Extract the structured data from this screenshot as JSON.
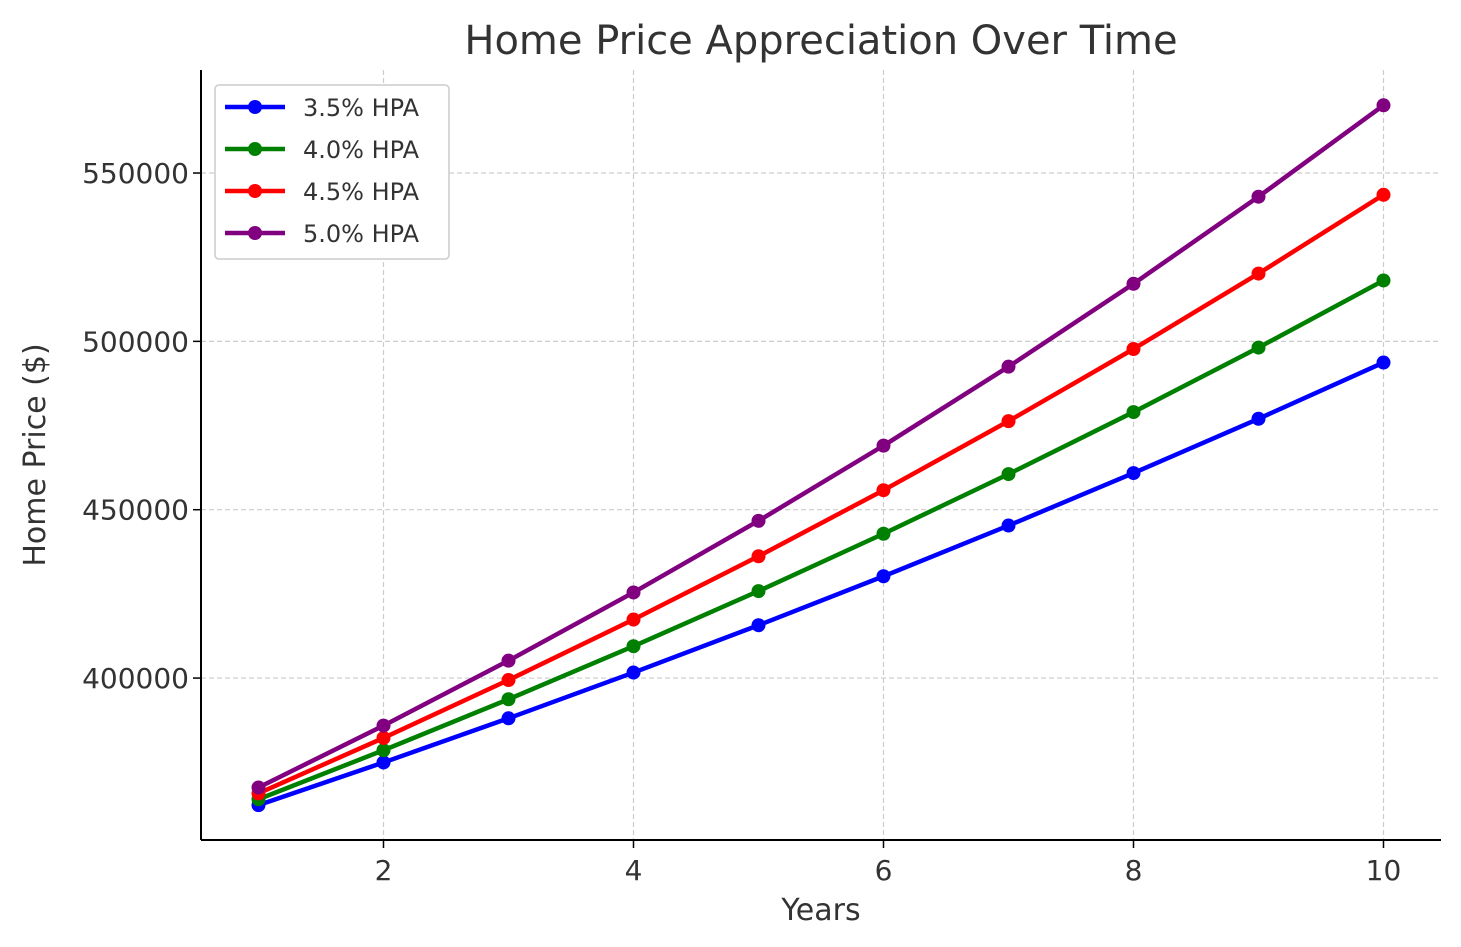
{
  "chart_data": {
    "type": "line",
    "title": "Home Price Appreciation Over Time",
    "xlabel": "Years",
    "ylabel": "Home Price ($)",
    "xlim": [
      0.54,
      10.46
    ],
    "ylim": [
      351900,
      580600
    ],
    "xticks": [
      2,
      4,
      6,
      8,
      10
    ],
    "yticks": [
      400000,
      450000,
      500000,
      550000
    ],
    "grid": true,
    "legend_position": "top-left",
    "x": [
      1,
      2,
      3,
      4,
      5,
      6,
      7,
      8,
      9,
      10
    ],
    "series": [
      {
        "name": "3.5% HPA",
        "color": "#0000ff",
        "values": [
          362250,
          374929,
          388051,
          401633,
          415690,
          430239,
          445298,
          460883,
          477014,
          493710
        ]
      },
      {
        "name": "4.0% HPA",
        "color": "#008000",
        "values": [
          364000,
          378560,
          393702,
          409451,
          425829,
          442862,
          460576,
          478999,
          498159,
          518085
        ]
      },
      {
        "name": "4.5% HPA",
        "color": "#ff0000",
        "values": [
          365750,
          382209,
          399408,
          417382,
          436164,
          455791,
          476302,
          497735,
          520133,
          543539
        ]
      },
      {
        "name": "5.0% HPA",
        "color": "#800080",
        "values": [
          367500,
          385875,
          405169,
          425427,
          446699,
          469034,
          492485,
          517109,
          542965,
          570113
        ]
      }
    ]
  }
}
